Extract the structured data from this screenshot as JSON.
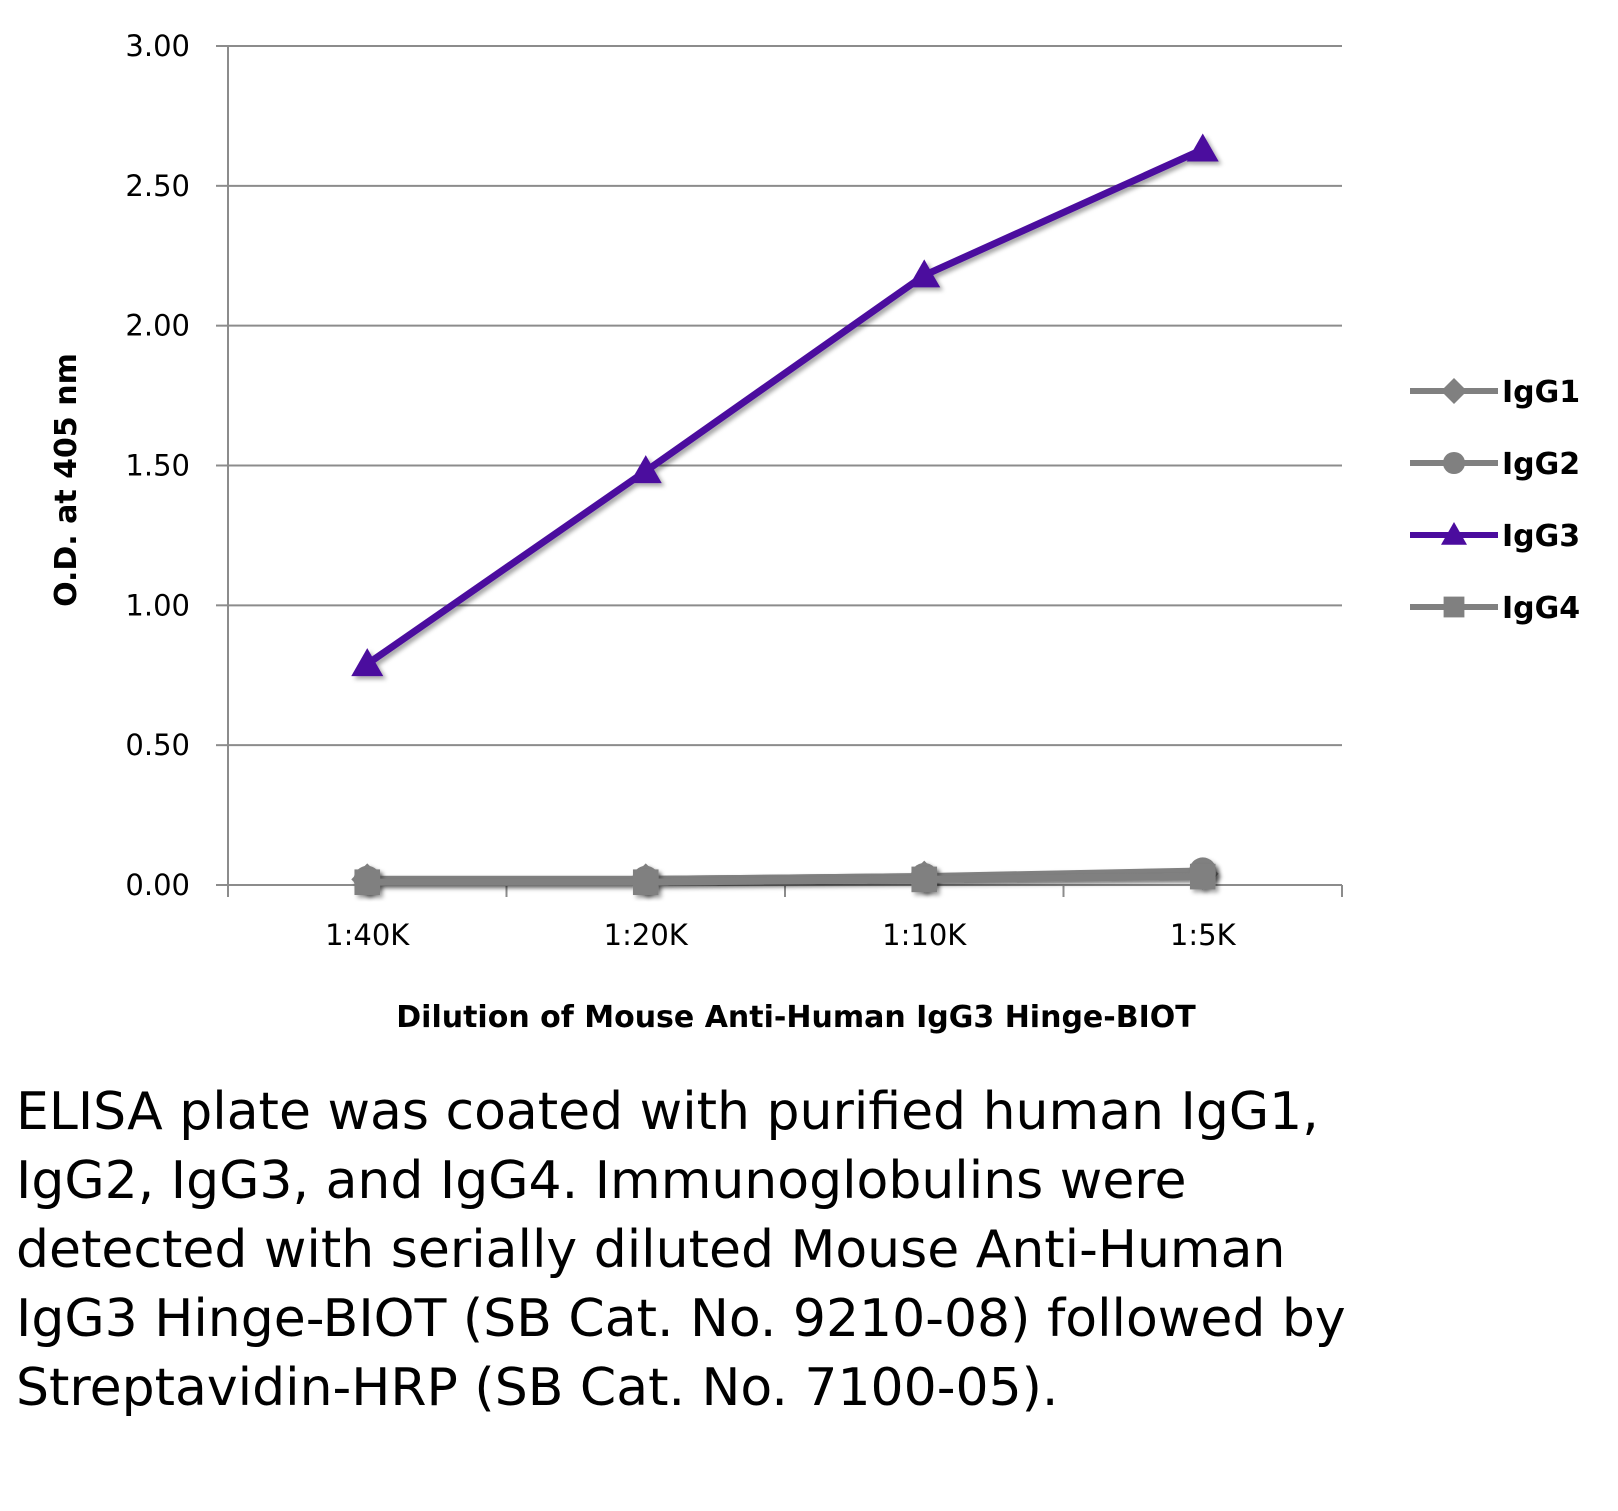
{
  "chart_data": {
    "type": "line",
    "title": "",
    "xlabel": "Dilution of Mouse Anti-Human IgG3 Hinge-BIOT",
    "ylabel": "O.D. at 405 nm",
    "categories": [
      "1:40K",
      "1:20K",
      "1:10K",
      "1:5K"
    ],
    "ylim": [
      0,
      3
    ],
    "yticks": [
      "0.00",
      "0.50",
      "1.00",
      "1.50",
      "2.00",
      "2.50",
      "3.00"
    ],
    "grid": true,
    "legend_position": "right",
    "series": [
      {
        "name": "IgG1",
        "color": "#808080",
        "marker": "diamond",
        "values": [
          0.02,
          0.02,
          0.03,
          0.04
        ]
      },
      {
        "name": "IgG2",
        "color": "#808080",
        "marker": "circle",
        "values": [
          0.02,
          0.02,
          0.03,
          0.05
        ]
      },
      {
        "name": "IgG3",
        "color": "#4B0C9E",
        "marker": "triangle",
        "values": [
          0.79,
          1.48,
          2.18,
          2.63
        ]
      },
      {
        "name": "IgG4",
        "color": "#808080",
        "marker": "square",
        "values": [
          0.01,
          0.01,
          0.02,
          0.03
        ]
      }
    ]
  },
  "caption": "ELISA plate was coated with purified human IgG1, IgG2, IgG3, and IgG4.  Immunoglobulins were detected with serially diluted Mouse Anti-Human IgG3 Hinge-BIOT (SB Cat. No. 9210-08) followed by Streptavidin-HRP (SB Cat. No. 7100-05)."
}
